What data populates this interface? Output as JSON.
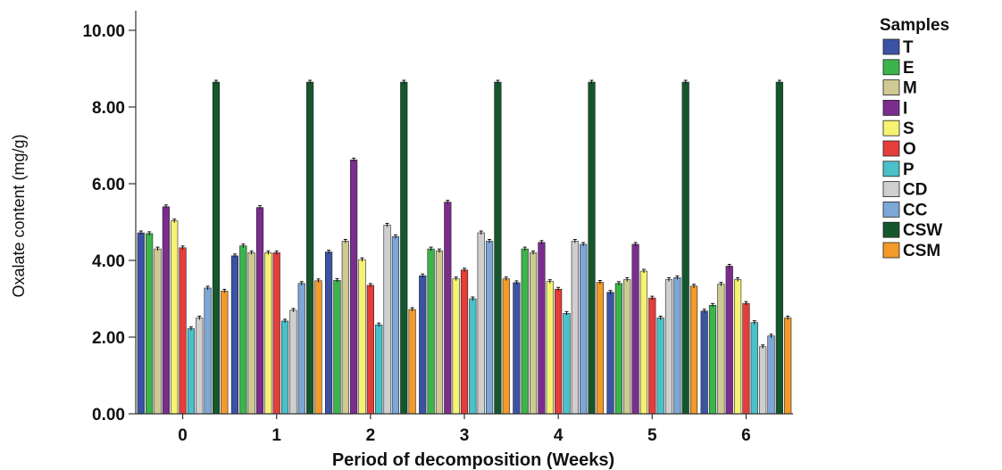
{
  "chart_data": {
    "type": "bar",
    "xlabel": "Period of decomposition (Weeks)",
    "ylabel": "Oxalate content (mg/g)",
    "ylim": [
      0,
      10
    ],
    "yticks": [
      "0.00",
      "2.00",
      "4.00",
      "6.00",
      "8.00",
      "10.00"
    ],
    "categories": [
      "0",
      "1",
      "2",
      "3",
      "4",
      "5",
      "6"
    ],
    "legend_title": "Samples",
    "legend_position": "right",
    "series": [
      {
        "name": "T",
        "color": "#3a53a4",
        "values": [
          4.72,
          4.12,
          4.22,
          3.6,
          3.42,
          3.17,
          2.68
        ]
      },
      {
        "name": "E",
        "color": "#3cb44b",
        "values": [
          4.7,
          4.38,
          3.48,
          4.3,
          4.3,
          3.4,
          2.83
        ]
      },
      {
        "name": "M",
        "color": "#cfc994",
        "values": [
          4.3,
          4.2,
          4.5,
          4.25,
          4.2,
          3.5,
          3.38
        ]
      },
      {
        "name": "I",
        "color": "#7b2d8e",
        "values": [
          5.4,
          5.38,
          6.62,
          5.52,
          4.47,
          4.42,
          3.85
        ]
      },
      {
        "name": "S",
        "color": "#f6f272",
        "values": [
          5.03,
          4.2,
          4.02,
          3.52,
          3.45,
          3.72,
          3.5
        ]
      },
      {
        "name": "O",
        "color": "#e53d3a",
        "values": [
          4.33,
          4.2,
          3.35,
          3.75,
          3.25,
          3.02,
          2.88
        ]
      },
      {
        "name": "P",
        "color": "#4ac0c8",
        "values": [
          2.22,
          2.42,
          2.32,
          3.0,
          2.62,
          2.5,
          2.38
        ]
      },
      {
        "name": "CD",
        "color": "#cfcfcf",
        "values": [
          2.5,
          2.7,
          4.92,
          4.72,
          4.5,
          3.5,
          1.75
        ]
      },
      {
        "name": "CC",
        "color": "#7ca7d6",
        "values": [
          3.28,
          3.4,
          4.62,
          4.5,
          4.42,
          3.55,
          2.03
        ]
      },
      {
        "name": "CSW",
        "color": "#15572c",
        "values": [
          8.65,
          8.65,
          8.65,
          8.65,
          8.65,
          8.65,
          8.65
        ]
      },
      {
        "name": "CSM",
        "color": "#f39a2a",
        "values": [
          3.2,
          3.47,
          2.72,
          3.52,
          3.43,
          3.33,
          2.5
        ]
      }
    ]
  }
}
